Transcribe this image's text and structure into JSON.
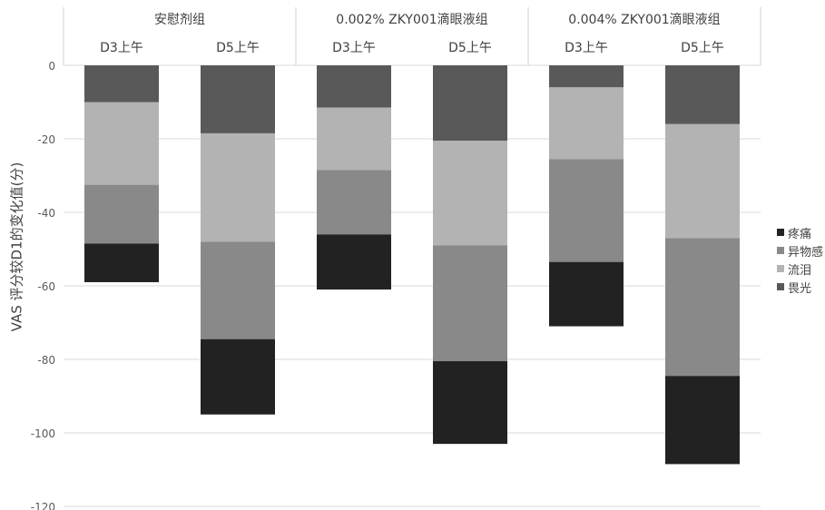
{
  "chart_data": {
    "type": "bar",
    "stacked": true,
    "ylabel": "VAS 评分较D1的变化值(分)",
    "ylim": [
      -120,
      0
    ],
    "yticks": [
      0,
      -20,
      -40,
      -60,
      -80,
      -100,
      -120
    ],
    "grid": true,
    "legend_position": "right",
    "groups": [
      {
        "label": "安慰剂组",
        "categories": [
          "D3上午",
          "D5上午"
        ]
      },
      {
        "label": "0.002% ZKY001滴眼液组",
        "categories": [
          "D3上午",
          "D5上午"
        ]
      },
      {
        "label": "0.004% ZKY001滴眼液组",
        "categories": [
          "D3上午",
          "D5上午"
        ]
      }
    ],
    "categories": [
      "D3上午",
      "D5上午",
      "D3上午",
      "D5上午",
      "D3上午",
      "D5上午"
    ],
    "series": [
      {
        "name": "畏光",
        "color": "#595959",
        "values": [
          -10,
          -18.5,
          -11.5,
          -20.5,
          -6,
          -16
        ]
      },
      {
        "name": "流泪",
        "color": "#b3b3b3",
        "values": [
          -22.5,
          -29.5,
          -17,
          -28.5,
          -19.5,
          -31
        ]
      },
      {
        "name": "异物感",
        "color": "#898989",
        "values": [
          -16,
          -26.5,
          -17.5,
          -31.5,
          -28,
          -37.5
        ]
      },
      {
        "name": "疼痛",
        "color": "#222222",
        "values": [
          -10.5,
          -20.5,
          -15,
          -22.5,
          -17.5,
          -24
        ]
      }
    ],
    "legend_order": [
      "疼痛",
      "异物感",
      "流泪",
      "畏光"
    ]
  }
}
